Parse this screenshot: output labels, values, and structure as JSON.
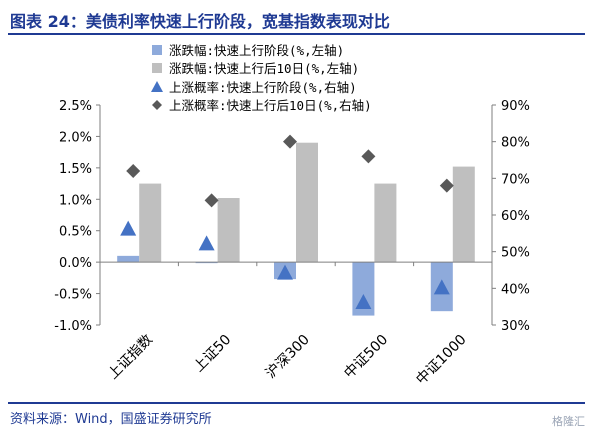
{
  "header": {
    "title": "图表 24：美债利率快速上行阶段，宽基指数表现对比"
  },
  "footer": {
    "source": "资料来源：Wind，国盛证券研究所",
    "watermark": "格隆汇"
  },
  "colors": {
    "brand": "#1f3a93",
    "bar_stage": "#8eaadb",
    "bar_10d": "#bfbfbf",
    "tri_stage": "#4472c4",
    "diamond_10d": "#595959",
    "axis": "#7f7f7f"
  },
  "chart_data": {
    "type": "bar",
    "categories": [
      "上证指数",
      "上证50",
      "沪深300",
      "中证500",
      "中证1000"
    ],
    "series": [
      {
        "name": "涨跌幅:快速上行阶段(%,左轴)",
        "type": "bar",
        "axis": "left",
        "values": [
          0.1,
          0.0,
          -0.27,
          -0.85,
          -0.78
        ]
      },
      {
        "name": "涨跌幅:快速上行后10日(%,左轴)",
        "type": "bar",
        "axis": "left",
        "values": [
          1.25,
          1.02,
          1.9,
          1.25,
          1.52
        ]
      },
      {
        "name": "上涨概率:快速上行阶段(%,右轴)",
        "type": "scatter",
        "marker": "triangle",
        "axis": "right",
        "values": [
          56,
          52,
          44,
          36,
          40
        ]
      },
      {
        "name": "上涨概率:快速上行后10日(%,右轴)",
        "type": "scatter",
        "marker": "diamond",
        "axis": "right",
        "values": [
          72,
          64,
          80,
          76,
          68
        ]
      }
    ],
    "y_left": {
      "range": [
        -1.0,
        2.5
      ],
      "step": 0.5,
      "tick_labels": [
        "-1.0%",
        "-0.5%",
        "0.0%",
        "0.5%",
        "1.0%",
        "1.5%",
        "2.0%",
        "2.5%"
      ]
    },
    "y_right": {
      "range": [
        30,
        90
      ],
      "step": 10,
      "tick_labels": [
        "30%",
        "40%",
        "50%",
        "60%",
        "70%",
        "80%",
        "90%"
      ]
    },
    "grid": false,
    "legend": {
      "position": "top"
    }
  }
}
